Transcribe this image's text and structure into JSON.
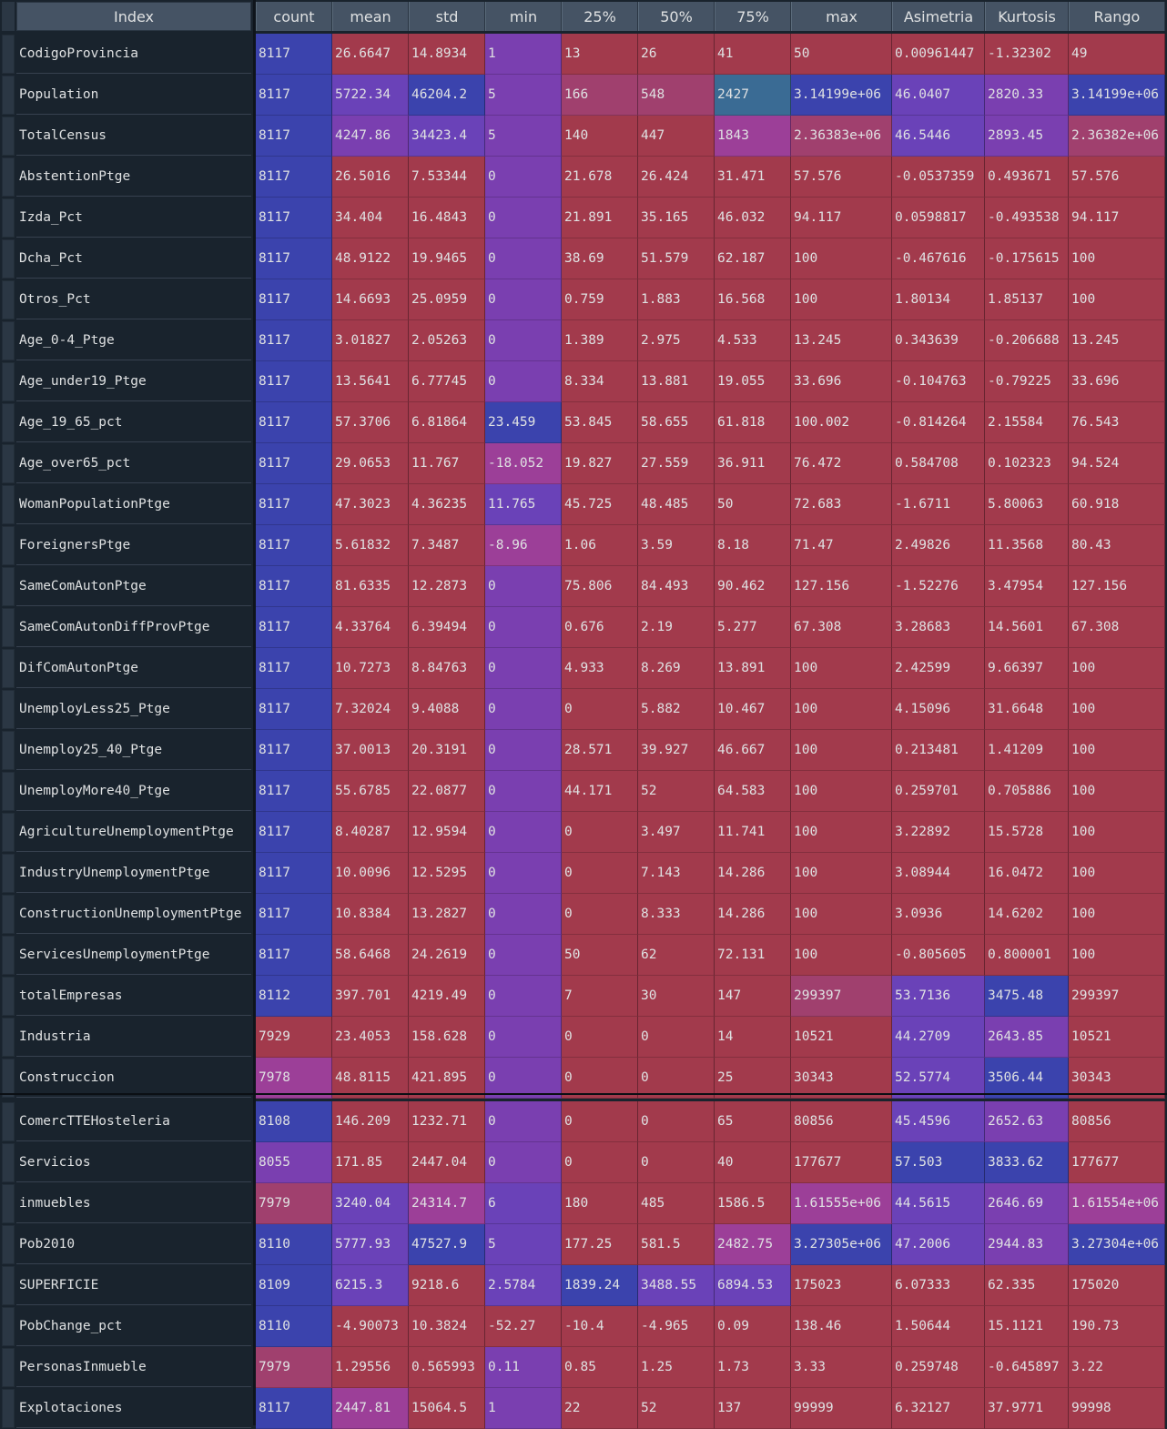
{
  "index_header": "Index",
  "columns": [
    "count",
    "mean",
    "std",
    "min",
    "25%",
    "50%",
    "75%",
    "max",
    "Asimetria",
    "Kurtosis",
    "Rango"
  ],
  "colors": {
    "red": "#a23a4c",
    "blue": "#3b43ad",
    "purple": "#7a3fb0",
    "violet": "#6a42b8",
    "magenta": "#9c3f98",
    "pink": "#a0406e",
    "teal": "#3a6b94",
    "header_bg": "#455364",
    "background": "#19232d"
  },
  "rows": [
    {
      "name": "CodigoProvincia",
      "values": [
        "8117",
        "26.6647",
        "14.8934",
        "1",
        "13",
        "26",
        "41",
        "50",
        "0.00961447",
        "-1.32302",
        "49"
      ],
      "colors": [
        "blue",
        "red",
        "red",
        "purple",
        "red",
        "red",
        "red",
        "red",
        "red",
        "red",
        "red"
      ]
    },
    {
      "name": "Population",
      "values": [
        "8117",
        "5722.34",
        "46204.2",
        "5",
        "166",
        "548",
        "2427",
        "3.14199e+06",
        "46.0407",
        "2820.33",
        "3.14199e+06"
      ],
      "colors": [
        "blue",
        "violet",
        "blue",
        "purple",
        "pink",
        "pink",
        "teal",
        "blue",
        "violet",
        "purple",
        "blue"
      ]
    },
    {
      "name": "TotalCensus",
      "values": [
        "8117",
        "4247.86",
        "34423.4",
        "5",
        "140",
        "447",
        "1843",
        "2.36383e+06",
        "46.5446",
        "2893.45",
        "2.36382e+06"
      ],
      "colors": [
        "blue",
        "purple",
        "violet",
        "purple",
        "red",
        "red",
        "magenta",
        "pink",
        "violet",
        "purple",
        "pink"
      ]
    },
    {
      "name": "AbstentionPtge",
      "values": [
        "8117",
        "26.5016",
        "7.53344",
        "0",
        "21.678",
        "26.424",
        "31.471",
        "57.576",
        "-0.0537359",
        "0.493671",
        "57.576"
      ],
      "colors": [
        "blue",
        "red",
        "red",
        "purple",
        "red",
        "red",
        "red",
        "red",
        "red",
        "red",
        "red"
      ]
    },
    {
      "name": "Izda_Pct",
      "values": [
        "8117",
        "34.404",
        "16.4843",
        "0",
        "21.891",
        "35.165",
        "46.032",
        "94.117",
        "0.0598817",
        "-0.493538",
        "94.117"
      ],
      "colors": [
        "blue",
        "red",
        "red",
        "purple",
        "red",
        "red",
        "red",
        "red",
        "red",
        "red",
        "red"
      ]
    },
    {
      "name": "Dcha_Pct",
      "values": [
        "8117",
        "48.9122",
        "19.9465",
        "0",
        "38.69",
        "51.579",
        "62.187",
        "100",
        "-0.467616",
        "-0.175615",
        "100"
      ],
      "colors": [
        "blue",
        "red",
        "red",
        "purple",
        "red",
        "red",
        "red",
        "red",
        "red",
        "red",
        "red"
      ]
    },
    {
      "name": "Otros_Pct",
      "values": [
        "8117",
        "14.6693",
        "25.0959",
        "0",
        "0.759",
        "1.883",
        "16.568",
        "100",
        "1.80134",
        "1.85137",
        "100"
      ],
      "colors": [
        "blue",
        "red",
        "red",
        "purple",
        "red",
        "red",
        "red",
        "red",
        "red",
        "red",
        "red"
      ]
    },
    {
      "name": "Age_0-4_Ptge",
      "values": [
        "8117",
        "3.01827",
        "2.05263",
        "0",
        "1.389",
        "2.975",
        "4.533",
        "13.245",
        "0.343639",
        "-0.206688",
        "13.245"
      ],
      "colors": [
        "blue",
        "red",
        "red",
        "purple",
        "red",
        "red",
        "red",
        "red",
        "red",
        "red",
        "red"
      ]
    },
    {
      "name": "Age_under19_Ptge",
      "values": [
        "8117",
        "13.5641",
        "6.77745",
        "0",
        "8.334",
        "13.881",
        "19.055",
        "33.696",
        "-0.104763",
        "-0.79225",
        "33.696"
      ],
      "colors": [
        "blue",
        "red",
        "red",
        "purple",
        "red",
        "red",
        "red",
        "red",
        "red",
        "red",
        "red"
      ]
    },
    {
      "name": "Age_19_65_pct",
      "values": [
        "8117",
        "57.3706",
        "6.81864",
        "23.459",
        "53.845",
        "58.655",
        "61.818",
        "100.002",
        "-0.814264",
        "2.15584",
        "76.543"
      ],
      "colors": [
        "blue",
        "red",
        "red",
        "blue",
        "red",
        "red",
        "red",
        "red",
        "red",
        "red",
        "red"
      ]
    },
    {
      "name": "Age_over65_pct",
      "values": [
        "8117",
        "29.0653",
        "11.767",
        "-18.052",
        "19.827",
        "27.559",
        "36.911",
        "76.472",
        "0.584708",
        "0.102323",
        "94.524"
      ],
      "colors": [
        "blue",
        "red",
        "red",
        "magenta",
        "red",
        "red",
        "red",
        "red",
        "red",
        "red",
        "red"
      ]
    },
    {
      "name": "WomanPopulationPtge",
      "values": [
        "8117",
        "47.3023",
        "4.36235",
        "11.765",
        "45.725",
        "48.485",
        "50",
        "72.683",
        "-1.6711",
        "5.80063",
        "60.918"
      ],
      "colors": [
        "blue",
        "red",
        "red",
        "violet",
        "red",
        "red",
        "red",
        "red",
        "red",
        "red",
        "red"
      ]
    },
    {
      "name": "ForeignersPtge",
      "values": [
        "8117",
        "5.61832",
        "7.3487",
        "-8.96",
        "1.06",
        "3.59",
        "8.18",
        "71.47",
        "2.49826",
        "11.3568",
        "80.43"
      ],
      "colors": [
        "blue",
        "red",
        "red",
        "magenta",
        "red",
        "red",
        "red",
        "red",
        "red",
        "red",
        "red"
      ]
    },
    {
      "name": "SameComAutonPtge",
      "values": [
        "8117",
        "81.6335",
        "12.2873",
        "0",
        "75.806",
        "84.493",
        "90.462",
        "127.156",
        "-1.52276",
        "3.47954",
        "127.156"
      ],
      "colors": [
        "blue",
        "red",
        "red",
        "purple",
        "red",
        "red",
        "red",
        "red",
        "red",
        "red",
        "red"
      ]
    },
    {
      "name": "SameComAutonDiffProvPtge",
      "values": [
        "8117",
        "4.33764",
        "6.39494",
        "0",
        "0.676",
        "2.19",
        "5.277",
        "67.308",
        "3.28683",
        "14.5601",
        "67.308"
      ],
      "colors": [
        "blue",
        "red",
        "red",
        "purple",
        "red",
        "red",
        "red",
        "red",
        "red",
        "red",
        "red"
      ]
    },
    {
      "name": "DifComAutonPtge",
      "values": [
        "8117",
        "10.7273",
        "8.84763",
        "0",
        "4.933",
        "8.269",
        "13.891",
        "100",
        "2.42599",
        "9.66397",
        "100"
      ],
      "colors": [
        "blue",
        "red",
        "red",
        "purple",
        "red",
        "red",
        "red",
        "red",
        "red",
        "red",
        "red"
      ]
    },
    {
      "name": "UnemployLess25_Ptge",
      "values": [
        "8117",
        "7.32024",
        "9.4088",
        "0",
        "0",
        "5.882",
        "10.467",
        "100",
        "4.15096",
        "31.6648",
        "100"
      ],
      "colors": [
        "blue",
        "red",
        "red",
        "purple",
        "red",
        "red",
        "red",
        "red",
        "red",
        "red",
        "red"
      ]
    },
    {
      "name": "Unemploy25_40_Ptge",
      "values": [
        "8117",
        "37.0013",
        "20.3191",
        "0",
        "28.571",
        "39.927",
        "46.667",
        "100",
        "0.213481",
        "1.41209",
        "100"
      ],
      "colors": [
        "blue",
        "red",
        "red",
        "purple",
        "red",
        "red",
        "red",
        "red",
        "red",
        "red",
        "red"
      ]
    },
    {
      "name": "UnemployMore40_Ptge",
      "values": [
        "8117",
        "55.6785",
        "22.0877",
        "0",
        "44.171",
        "52",
        "64.583",
        "100",
        "0.259701",
        "0.705886",
        "100"
      ],
      "colors": [
        "blue",
        "red",
        "red",
        "purple",
        "red",
        "red",
        "red",
        "red",
        "red",
        "red",
        "red"
      ]
    },
    {
      "name": "AgricultureUnemploymentPtge",
      "values": [
        "8117",
        "8.40287",
        "12.9594",
        "0",
        "0",
        "3.497",
        "11.741",
        "100",
        "3.22892",
        "15.5728",
        "100"
      ],
      "colors": [
        "blue",
        "red",
        "red",
        "purple",
        "red",
        "red",
        "red",
        "red",
        "red",
        "red",
        "red"
      ]
    },
    {
      "name": "IndustryUnemploymentPtge",
      "values": [
        "8117",
        "10.0096",
        "12.5295",
        "0",
        "0",
        "7.143",
        "14.286",
        "100",
        "3.08944",
        "16.0472",
        "100"
      ],
      "colors": [
        "blue",
        "red",
        "red",
        "purple",
        "red",
        "red",
        "red",
        "red",
        "red",
        "red",
        "red"
      ]
    },
    {
      "name": "ConstructionUnemploymentPtge",
      "values": [
        "8117",
        "10.8384",
        "13.2827",
        "0",
        "0",
        "8.333",
        "14.286",
        "100",
        "3.0936",
        "14.6202",
        "100"
      ],
      "colors": [
        "blue",
        "red",
        "red",
        "purple",
        "red",
        "red",
        "red",
        "red",
        "red",
        "red",
        "red"
      ]
    },
    {
      "name": "ServicesUnemploymentPtge",
      "values": [
        "8117",
        "58.6468",
        "24.2619",
        "0",
        "50",
        "62",
        "72.131",
        "100",
        "-0.805605",
        "0.800001",
        "100"
      ],
      "colors": [
        "blue",
        "red",
        "red",
        "purple",
        "red",
        "red",
        "red",
        "red",
        "red",
        "red",
        "red"
      ]
    },
    {
      "name": "totalEmpresas",
      "values": [
        "8112",
        "397.701",
        "4219.49",
        "0",
        "7",
        "30",
        "147",
        "299397",
        "53.7136",
        "3475.48",
        "299397"
      ],
      "colors": [
        "blue",
        "red",
        "red",
        "purple",
        "red",
        "red",
        "red",
        "pink",
        "violet",
        "blue",
        "red"
      ]
    },
    {
      "name": "Industria",
      "values": [
        "7929",
        "23.4053",
        "158.628",
        "0",
        "0",
        "0",
        "14",
        "10521",
        "44.2709",
        "2643.85",
        "10521"
      ],
      "colors": [
        "red",
        "red",
        "red",
        "purple",
        "red",
        "red",
        "red",
        "red",
        "violet",
        "purple",
        "red"
      ]
    },
    {
      "name": "Construccion",
      "values": [
        "7978",
        "48.8115",
        "421.895",
        "0",
        "0",
        "0",
        "25",
        "30343",
        "52.5774",
        "3506.44",
        "30343"
      ],
      "colors": [
        "magenta",
        "red",
        "red",
        "purple",
        "red",
        "red",
        "red",
        "red",
        "violet",
        "blue",
        "red"
      ]
    },
    {
      "name": "ComercTTEHosteleria",
      "values": [
        "8108",
        "146.209",
        "1232.71",
        "0",
        "0",
        "0",
        "65",
        "80856",
        "45.4596",
        "2652.63",
        "80856"
      ],
      "colors": [
        "blue",
        "red",
        "red",
        "purple",
        "red",
        "red",
        "red",
        "red",
        "violet",
        "purple",
        "red"
      ]
    },
    {
      "name": "Servicios",
      "values": [
        "8055",
        "171.85",
        "2447.04",
        "0",
        "0",
        "0",
        "40",
        "177677",
        "57.503",
        "3833.62",
        "177677"
      ],
      "colors": [
        "purple",
        "red",
        "red",
        "purple",
        "red",
        "red",
        "red",
        "red",
        "blue",
        "blue",
        "red"
      ]
    },
    {
      "name": "inmuebles",
      "values": [
        "7979",
        "3240.04",
        "24314.7",
        "6",
        "180",
        "485",
        "1586.5",
        "1.61555e+06",
        "44.5615",
        "2646.69",
        "1.61554e+06"
      ],
      "colors": [
        "pink",
        "violet",
        "magenta",
        "violet",
        "red",
        "red",
        "red",
        "magenta",
        "violet",
        "purple",
        "magenta"
      ]
    },
    {
      "name": "Pob2010",
      "values": [
        "8110",
        "5777.93",
        "47527.9",
        "5",
        "177.25",
        "581.5",
        "2482.75",
        "3.27305e+06",
        "47.2006",
        "2944.83",
        "3.27304e+06"
      ],
      "colors": [
        "blue",
        "violet",
        "blue",
        "violet",
        "red",
        "red",
        "magenta",
        "blue",
        "violet",
        "purple",
        "blue"
      ]
    },
    {
      "name": "SUPERFICIE",
      "values": [
        "8109",
        "6215.3",
        "9218.6",
        "2.5784",
        "1839.24",
        "3488.55",
        "6894.53",
        "175023",
        "6.07333",
        "62.335",
        "175020"
      ],
      "colors": [
        "blue",
        "violet",
        "red",
        "violet",
        "blue",
        "violet",
        "violet",
        "red",
        "red",
        "red",
        "red"
      ]
    },
    {
      "name": "PobChange_pct",
      "values": [
        "8110",
        "-4.90073",
        "10.3824",
        "-52.27",
        "-10.4",
        "-4.965",
        "0.09",
        "138.46",
        "1.50644",
        "15.1121",
        "190.73"
      ],
      "colors": [
        "blue",
        "red",
        "red",
        "red",
        "red",
        "red",
        "red",
        "red",
        "red",
        "red",
        "red"
      ]
    },
    {
      "name": "PersonasInmueble",
      "values": [
        "7979",
        "1.29556",
        "0.565993",
        "0.11",
        "0.85",
        "1.25",
        "1.73",
        "3.33",
        "0.259748",
        "-0.645897",
        "3.22"
      ],
      "colors": [
        "pink",
        "red",
        "red",
        "purple",
        "red",
        "red",
        "red",
        "red",
        "red",
        "red",
        "red"
      ]
    },
    {
      "name": "Explotaciones",
      "values": [
        "8117",
        "2447.81",
        "15064.5",
        "1",
        "22",
        "52",
        "137",
        "99999",
        "6.32127",
        "37.9771",
        "99998"
      ],
      "colors": [
        "blue",
        "magenta",
        "red",
        "purple",
        "red",
        "red",
        "red",
        "red",
        "red",
        "red",
        "red"
      ]
    }
  ]
}
